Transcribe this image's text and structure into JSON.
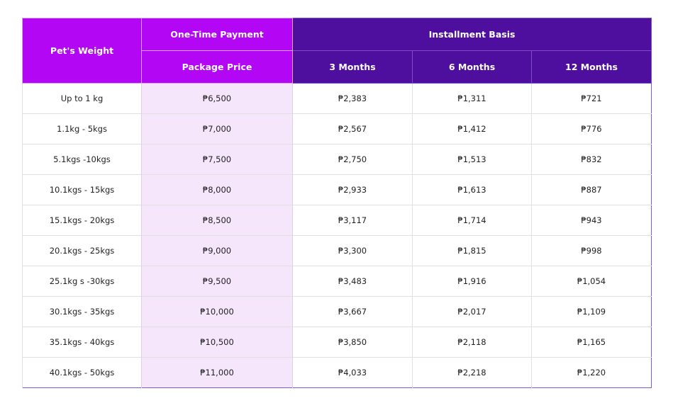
{
  "colors": {
    "header_magenta": "#b306f4",
    "header_dark": "#4e0f9e",
    "package_bg": "#f6e6fc",
    "border": "#7b5cc8"
  },
  "header": {
    "weight": "Pet's Weight",
    "one_time": "One-Time Payment",
    "installment": "Installment Basis",
    "package_price": "Package Price",
    "m3": "3 Months",
    "m6": "6 Months",
    "m12": "12 Months"
  },
  "rows": [
    {
      "weight": "Up to 1 kg",
      "price": "₱6,500",
      "m3": "₱2,383",
      "m6": "₱1,311",
      "m12": "₱721"
    },
    {
      "weight": "1.1kg - 5kgs",
      "price": "₱7,000",
      "m3": "₱2,567",
      "m6": "₱1,412",
      "m12": "₱776"
    },
    {
      "weight": "5.1kgs -10kgs",
      "price": "₱7,500",
      "m3": "₱2,750",
      "m6": "₱1,513",
      "m12": "₱832"
    },
    {
      "weight": "10.1kgs - 15kgs",
      "price": "₱8,000",
      "m3": "₱2,933",
      "m6": "₱1,613",
      "m12": "₱887"
    },
    {
      "weight": "15.1kgs - 20kgs",
      "price": "₱8,500",
      "m3": "₱3,117",
      "m6": "₱1,714",
      "m12": "₱943"
    },
    {
      "weight": "20.1kgs - 25kgs",
      "price": "₱9,000",
      "m3": "₱3,300",
      "m6": "₱1,815",
      "m12": "₱998"
    },
    {
      "weight": "25.1kg s -30kgs",
      "price": "₱9,500",
      "m3": "₱3,483",
      "m6": "₱1,916",
      "m12": "₱1,054"
    },
    {
      "weight": "30.1kgs - 35kgs",
      "price": "₱10,000",
      "m3": "₱3,667",
      "m6": "₱2,017",
      "m12": "₱1,109"
    },
    {
      "weight": "35.1kgs - 40kgs",
      "price": "₱10,500",
      "m3": "₱3,850",
      "m6": "₱2,118",
      "m12": "₱1,165"
    },
    {
      "weight": "40.1kgs - 50kgs",
      "price": "₱11,000",
      "m3": "₱4,033",
      "m6": "₱2,218",
      "m12": "₱1,220"
    }
  ]
}
